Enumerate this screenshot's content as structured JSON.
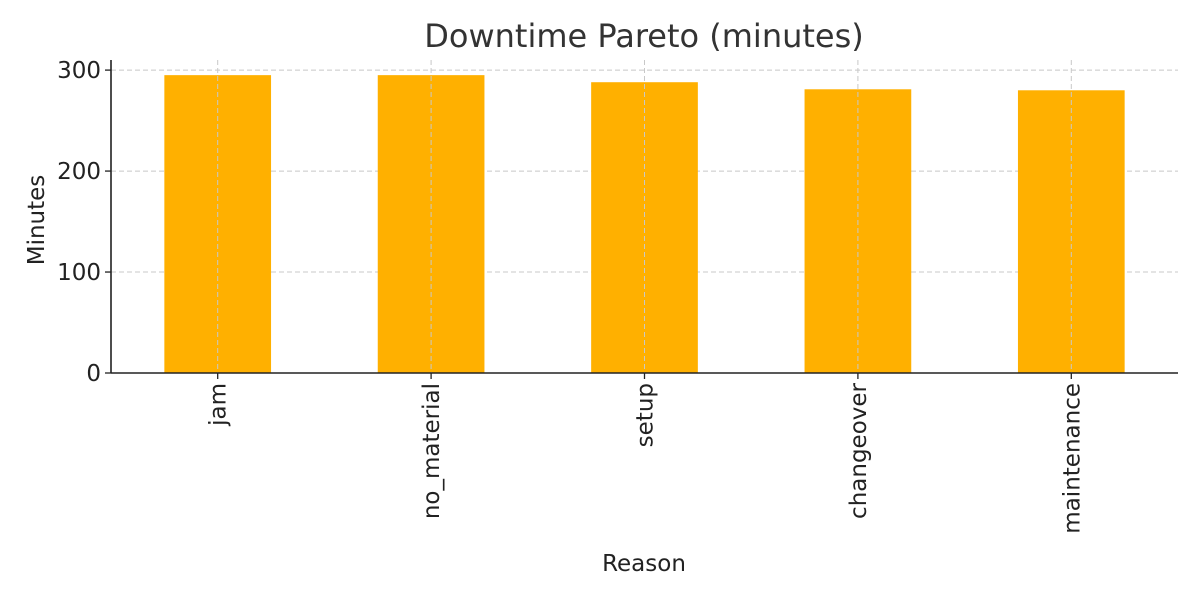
{
  "chart_data": {
    "type": "bar",
    "title": "Downtime Pareto (minutes)",
    "xlabel": "Reason",
    "ylabel": "Minutes",
    "categories": [
      "jam",
      "no_material",
      "setup",
      "changeover",
      "maintenance"
    ],
    "values": [
      295,
      295,
      288,
      281,
      280
    ],
    "ylim": [
      0,
      310
    ],
    "yticks": [
      0,
      100,
      200,
      300
    ],
    "grid": true,
    "bar_color": "#FFB000"
  }
}
